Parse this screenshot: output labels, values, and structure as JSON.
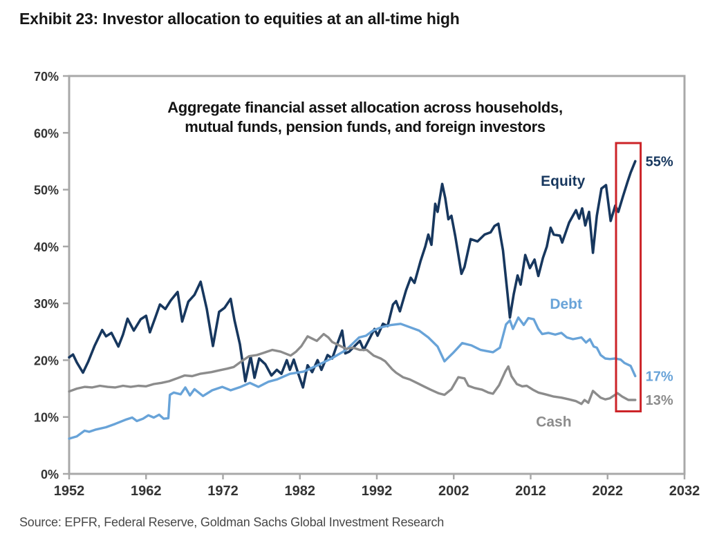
{
  "page": {
    "title": "Exhibit 23: Investor allocation to equities at an all-time high",
    "source": "Source: EPFR, Federal Reserve, Goldman Sachs Global Investment Research"
  },
  "chart_data": {
    "type": "line",
    "title": "Exhibit 23: Investor allocation to equities at an all-time high",
    "subtitle_lines": [
      "Aggregate financial asset allocation across households,",
      "mutual funds, pension funds, and foreign investors"
    ],
    "xlabel": "",
    "ylabel": "",
    "xlim": [
      1952,
      2032
    ],
    "ylim": [
      0,
      70
    ],
    "x_ticks": [
      1952,
      1962,
      1972,
      1982,
      1992,
      2002,
      2012,
      2022,
      2032
    ],
    "y_ticks": [
      0,
      10,
      20,
      30,
      40,
      50,
      60,
      70
    ],
    "y_tick_suffix": "%",
    "grid": false,
    "legend_position": "inline-labels",
    "axis_color": "#a8a8a8",
    "highlight_box": {
      "x": [
        2023.1,
        2026.3
      ],
      "y": [
        11.0,
        58.2
      ],
      "color": "#cc2328"
    },
    "series": [
      {
        "name": "Equity",
        "color": "#17375e",
        "line_width": 3.6,
        "end_label": "55%",
        "label_pos": {
          "x": 2016.2,
          "y": 51.5
        },
        "points": [
          [
            1952,
            20.5
          ],
          [
            1952.5,
            21.0
          ],
          [
            1953,
            19.6
          ],
          [
            1953.8,
            17.8
          ],
          [
            1954.5,
            19.8
          ],
          [
            1955.3,
            22.5
          ],
          [
            1956.3,
            25.3
          ],
          [
            1956.8,
            24.2
          ],
          [
            1957.5,
            24.8
          ],
          [
            1958.4,
            22.4
          ],
          [
            1959,
            24.5
          ],
          [
            1959.6,
            27.3
          ],
          [
            1960.4,
            25.2
          ],
          [
            1961.3,
            27.2
          ],
          [
            1962,
            27.8
          ],
          [
            1962.5,
            24.9
          ],
          [
            1963.2,
            27.5
          ],
          [
            1963.8,
            29.8
          ],
          [
            1964.5,
            29.0
          ],
          [
            1965.2,
            30.5
          ],
          [
            1966.1,
            32.0
          ],
          [
            1966.7,
            26.8
          ],
          [
            1967.5,
            30.3
          ],
          [
            1968.3,
            31.5
          ],
          [
            1969.1,
            33.8
          ],
          [
            1969.9,
            29.0
          ],
          [
            1970.7,
            22.5
          ],
          [
            1971.5,
            28.5
          ],
          [
            1972.2,
            29.2
          ],
          [
            1973,
            30.8
          ],
          [
            1973.5,
            27.0
          ],
          [
            1974.2,
            22.8
          ],
          [
            1974.9,
            16.3
          ],
          [
            1975.6,
            20.7
          ],
          [
            1976.1,
            16.9
          ],
          [
            1976.7,
            20.3
          ],
          [
            1977.5,
            19.3
          ],
          [
            1978.3,
            17.3
          ],
          [
            1979,
            18.3
          ],
          [
            1979.6,
            17.6
          ],
          [
            1980.3,
            20.0
          ],
          [
            1980.7,
            18.3
          ],
          [
            1981.2,
            20.1
          ],
          [
            1981.8,
            17.6
          ],
          [
            1982.4,
            15.2
          ],
          [
            1983,
            19.1
          ],
          [
            1983.6,
            17.9
          ],
          [
            1984.3,
            20.0
          ],
          [
            1984.8,
            18.3
          ],
          [
            1985.6,
            20.9
          ],
          [
            1986.2,
            20.3
          ],
          [
            1986.9,
            23.0
          ],
          [
            1987.5,
            25.2
          ],
          [
            1987.9,
            21.2
          ],
          [
            1988.4,
            21.5
          ],
          [
            1989.2,
            22.6
          ],
          [
            1989.8,
            23.4
          ],
          [
            1990.3,
            21.8
          ],
          [
            1991.2,
            24.2
          ],
          [
            1991.7,
            25.5
          ],
          [
            1992.1,
            24.3
          ],
          [
            1992.8,
            26.4
          ],
          [
            1993.4,
            26.0
          ],
          [
            1994.1,
            29.8
          ],
          [
            1994.5,
            30.4
          ],
          [
            1995,
            28.6
          ],
          [
            1995.8,
            32.3
          ],
          [
            1996.4,
            34.5
          ],
          [
            1996.9,
            33.6
          ],
          [
            1997.7,
            37.5
          ],
          [
            1998.3,
            40.0
          ],
          [
            1998.7,
            42.1
          ],
          [
            1999.1,
            40.3
          ],
          [
            1999.6,
            47.5
          ],
          [
            1999.9,
            46.1
          ],
          [
            2000.5,
            51.0
          ],
          [
            2000.9,
            48.5
          ],
          [
            2001.3,
            44.8
          ],
          [
            2001.7,
            45.4
          ],
          [
            2002.2,
            41.8
          ],
          [
            2003,
            35.2
          ],
          [
            2003.4,
            36.4
          ],
          [
            2004.2,
            41.3
          ],
          [
            2005.1,
            40.9
          ],
          [
            2006,
            42.1
          ],
          [
            2006.8,
            42.5
          ],
          [
            2007.3,
            43.6
          ],
          [
            2007.8,
            44.0
          ],
          [
            2008.4,
            39.3
          ],
          [
            2009,
            31.6
          ],
          [
            2009.3,
            27.5
          ],
          [
            2009.8,
            31.6
          ],
          [
            2010.3,
            34.9
          ],
          [
            2010.7,
            33.3
          ],
          [
            2011.3,
            38.5
          ],
          [
            2011.9,
            36.2
          ],
          [
            2012.5,
            37.7
          ],
          [
            2013,
            34.8
          ],
          [
            2013.6,
            38.0
          ],
          [
            2014.1,
            40.0
          ],
          [
            2014.6,
            43.3
          ],
          [
            2015,
            42.1
          ],
          [
            2015.8,
            41.9
          ],
          [
            2016.1,
            40.7
          ],
          [
            2017,
            44.2
          ],
          [
            2017.9,
            46.4
          ],
          [
            2018.3,
            44.9
          ],
          [
            2018.7,
            46.7
          ],
          [
            2019.1,
            43.7
          ],
          [
            2019.6,
            46.1
          ],
          [
            2020.1,
            38.9
          ],
          [
            2020.6,
            45.4
          ],
          [
            2021.2,
            50.2
          ],
          [
            2021.8,
            50.8
          ],
          [
            2022.4,
            44.5
          ],
          [
            2023,
            47.2
          ],
          [
            2023.4,
            46.1
          ],
          [
            2024,
            48.8
          ],
          [
            2024.6,
            51.4
          ],
          [
            2025,
            53.0
          ],
          [
            2025.6,
            55.0
          ]
        ]
      },
      {
        "name": "Debt",
        "color": "#68a3d8",
        "line_width": 3.4,
        "end_label": "17%",
        "label_pos": {
          "x": 2016.6,
          "y": 29.9
        },
        "points": [
          [
            1952,
            6.2
          ],
          [
            1953,
            6.6
          ],
          [
            1954,
            7.6
          ],
          [
            1954.6,
            7.4
          ],
          [
            1955.5,
            7.8
          ],
          [
            1956.8,
            8.2
          ],
          [
            1958,
            8.8
          ],
          [
            1959.3,
            9.5
          ],
          [
            1960.2,
            9.9
          ],
          [
            1960.8,
            9.3
          ],
          [
            1961.6,
            9.7
          ],
          [
            1962.3,
            10.3
          ],
          [
            1963,
            9.9
          ],
          [
            1963.7,
            10.4
          ],
          [
            1964.3,
            9.7
          ],
          [
            1964.9,
            9.8
          ],
          [
            1965.1,
            13.9
          ],
          [
            1965.6,
            14.3
          ],
          [
            1966.5,
            14.0
          ],
          [
            1967.1,
            15.2
          ],
          [
            1967.7,
            13.8
          ],
          [
            1968.3,
            14.9
          ],
          [
            1969.4,
            13.7
          ],
          [
            1970.6,
            14.7
          ],
          [
            1971.9,
            15.3
          ],
          [
            1973,
            14.7
          ],
          [
            1974.3,
            15.3
          ],
          [
            1975.5,
            16.0
          ],
          [
            1976.6,
            15.3
          ],
          [
            1977.9,
            16.2
          ],
          [
            1979,
            16.6
          ],
          [
            1980.7,
            17.6
          ],
          [
            1982.5,
            18.0
          ],
          [
            1984.3,
            19.1
          ],
          [
            1986.1,
            20.3
          ],
          [
            1988,
            21.8
          ],
          [
            1989.7,
            24.0
          ],
          [
            1990.6,
            24.3
          ],
          [
            1991.5,
            25.2
          ],
          [
            1992.6,
            25.8
          ],
          [
            1993.9,
            26.2
          ],
          [
            1995.1,
            26.4
          ],
          [
            1996.3,
            25.8
          ],
          [
            1997.5,
            25.2
          ],
          [
            1998.7,
            24.0
          ],
          [
            1999.9,
            22.4
          ],
          [
            2000.8,
            19.8
          ],
          [
            2002,
            21.4
          ],
          [
            2003.1,
            23.0
          ],
          [
            2004.3,
            22.6
          ],
          [
            2005.5,
            21.8
          ],
          [
            2006.3,
            21.6
          ],
          [
            2007.1,
            21.4
          ],
          [
            2008,
            22.2
          ],
          [
            2008.8,
            26.3
          ],
          [
            2009.3,
            27.0
          ],
          [
            2009.7,
            25.5
          ],
          [
            2010.4,
            27.5
          ],
          [
            2011.1,
            26.2
          ],
          [
            2011.7,
            27.4
          ],
          [
            2012.4,
            27.2
          ],
          [
            2013,
            25.5
          ],
          [
            2013.5,
            24.6
          ],
          [
            2014.3,
            24.8
          ],
          [
            2015.2,
            24.5
          ],
          [
            2016,
            24.8
          ],
          [
            2016.7,
            24.0
          ],
          [
            2017.5,
            23.7
          ],
          [
            2018.6,
            24.0
          ],
          [
            2019.2,
            23.1
          ],
          [
            2019.7,
            23.7
          ],
          [
            2020.2,
            22.4
          ],
          [
            2020.6,
            22.2
          ],
          [
            2021.1,
            20.9
          ],
          [
            2021.7,
            20.3
          ],
          [
            2022.3,
            20.2
          ],
          [
            2023,
            20.3
          ],
          [
            2023.7,
            20.1
          ],
          [
            2024.2,
            19.5
          ],
          [
            2025,
            19.0
          ],
          [
            2025.6,
            17.2
          ]
        ]
      },
      {
        "name": "Cash",
        "color": "#8c8c8c",
        "line_width": 3.4,
        "end_label": "13%",
        "label_pos": {
          "x": 2015.0,
          "y": 9.2
        },
        "points": [
          [
            1952,
            14.5
          ],
          [
            1953,
            15.0
          ],
          [
            1954,
            15.3
          ],
          [
            1955,
            15.2
          ],
          [
            1956,
            15.5
          ],
          [
            1957,
            15.3
          ],
          [
            1958,
            15.2
          ],
          [
            1959,
            15.5
          ],
          [
            1960,
            15.3
          ],
          [
            1961,
            15.5
          ],
          [
            1962,
            15.4
          ],
          [
            1963,
            15.8
          ],
          [
            1964,
            16.0
          ],
          [
            1965,
            16.3
          ],
          [
            1966,
            16.8
          ],
          [
            1967,
            17.3
          ],
          [
            1968,
            17.2
          ],
          [
            1969,
            17.6
          ],
          [
            1970.5,
            17.9
          ],
          [
            1971.5,
            18.2
          ],
          [
            1972.5,
            18.5
          ],
          [
            1973.4,
            18.8
          ],
          [
            1974.4,
            19.8
          ],
          [
            1975.4,
            20.7
          ],
          [
            1976.4,
            20.9
          ],
          [
            1977.3,
            21.3
          ],
          [
            1978.4,
            21.8
          ],
          [
            1979.5,
            21.5
          ],
          [
            1980.8,
            20.8
          ],
          [
            1981.5,
            21.5
          ],
          [
            1982.2,
            22.5
          ],
          [
            1983,
            24.2
          ],
          [
            1983.6,
            23.8
          ],
          [
            1984.2,
            23.4
          ],
          [
            1985.1,
            24.6
          ],
          [
            1985.7,
            24.0
          ],
          [
            1986.2,
            23.2
          ],
          [
            1987.1,
            22.6
          ],
          [
            1988,
            22.0
          ],
          [
            1988.9,
            22.2
          ],
          [
            1989.8,
            21.8
          ],
          [
            1990.7,
            21.8
          ],
          [
            1991.6,
            20.8
          ],
          [
            1992.5,
            20.3
          ],
          [
            1993.1,
            19.8
          ],
          [
            1994,
            18.4
          ],
          [
            1994.5,
            17.8
          ],
          [
            1995.4,
            17.0
          ],
          [
            1996.3,
            16.6
          ],
          [
            1997.2,
            16.0
          ],
          [
            1998.1,
            15.4
          ],
          [
            1999,
            14.8
          ],
          [
            2000,
            14.2
          ],
          [
            2000.8,
            13.9
          ],
          [
            2001.7,
            14.9
          ],
          [
            2002.6,
            17.0
          ],
          [
            2003.4,
            16.8
          ],
          [
            2003.9,
            15.5
          ],
          [
            2004.7,
            15.1
          ],
          [
            2005.7,
            14.8
          ],
          [
            2006.5,
            14.3
          ],
          [
            2007.1,
            14.1
          ],
          [
            2007.9,
            15.6
          ],
          [
            2008.7,
            18.0
          ],
          [
            2009.1,
            18.9
          ],
          [
            2009.5,
            17.2
          ],
          [
            2010.2,
            15.8
          ],
          [
            2010.9,
            15.4
          ],
          [
            2011.5,
            15.5
          ],
          [
            2012.3,
            14.8
          ],
          [
            2013,
            14.3
          ],
          [
            2013.9,
            14.0
          ],
          [
            2015,
            13.6
          ],
          [
            2016,
            13.4
          ],
          [
            2017,
            13.1
          ],
          [
            2017.9,
            12.8
          ],
          [
            2018.6,
            12.3
          ],
          [
            2019,
            13.0
          ],
          [
            2019.5,
            12.5
          ],
          [
            2020.1,
            14.6
          ],
          [
            2020.5,
            14.1
          ],
          [
            2021.1,
            13.4
          ],
          [
            2021.7,
            13.1
          ],
          [
            2022.3,
            13.3
          ],
          [
            2023.3,
            14.2
          ],
          [
            2023.9,
            13.6
          ],
          [
            2024.7,
            13.0
          ],
          [
            2025.6,
            13.0
          ]
        ]
      }
    ]
  }
}
